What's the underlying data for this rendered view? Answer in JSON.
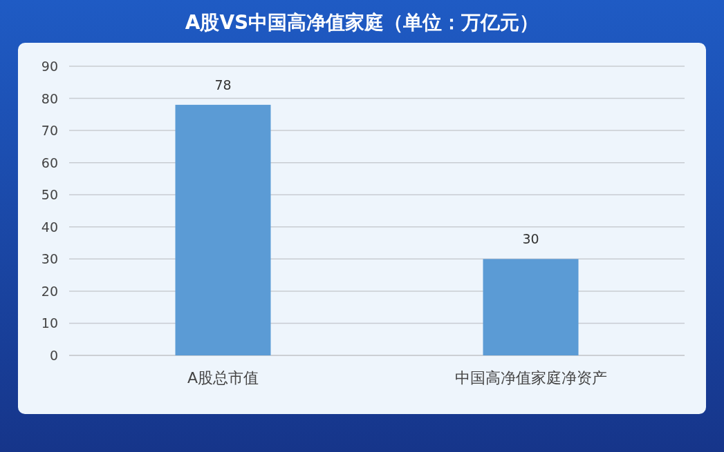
{
  "chart_data": {
    "type": "bar",
    "title": "A股VS中国高净值家庭（单位：万亿元）",
    "categories": [
      "A股总市值",
      "中国高净值家庭净资产"
    ],
    "values": [
      78,
      30
    ],
    "color": "#5b9bd5",
    "ylim": [
      0,
      90
    ],
    "yticks": [
      0,
      10,
      20,
      30,
      40,
      50,
      60,
      70,
      80,
      90
    ],
    "grid": "y",
    "data_labels": true
  }
}
